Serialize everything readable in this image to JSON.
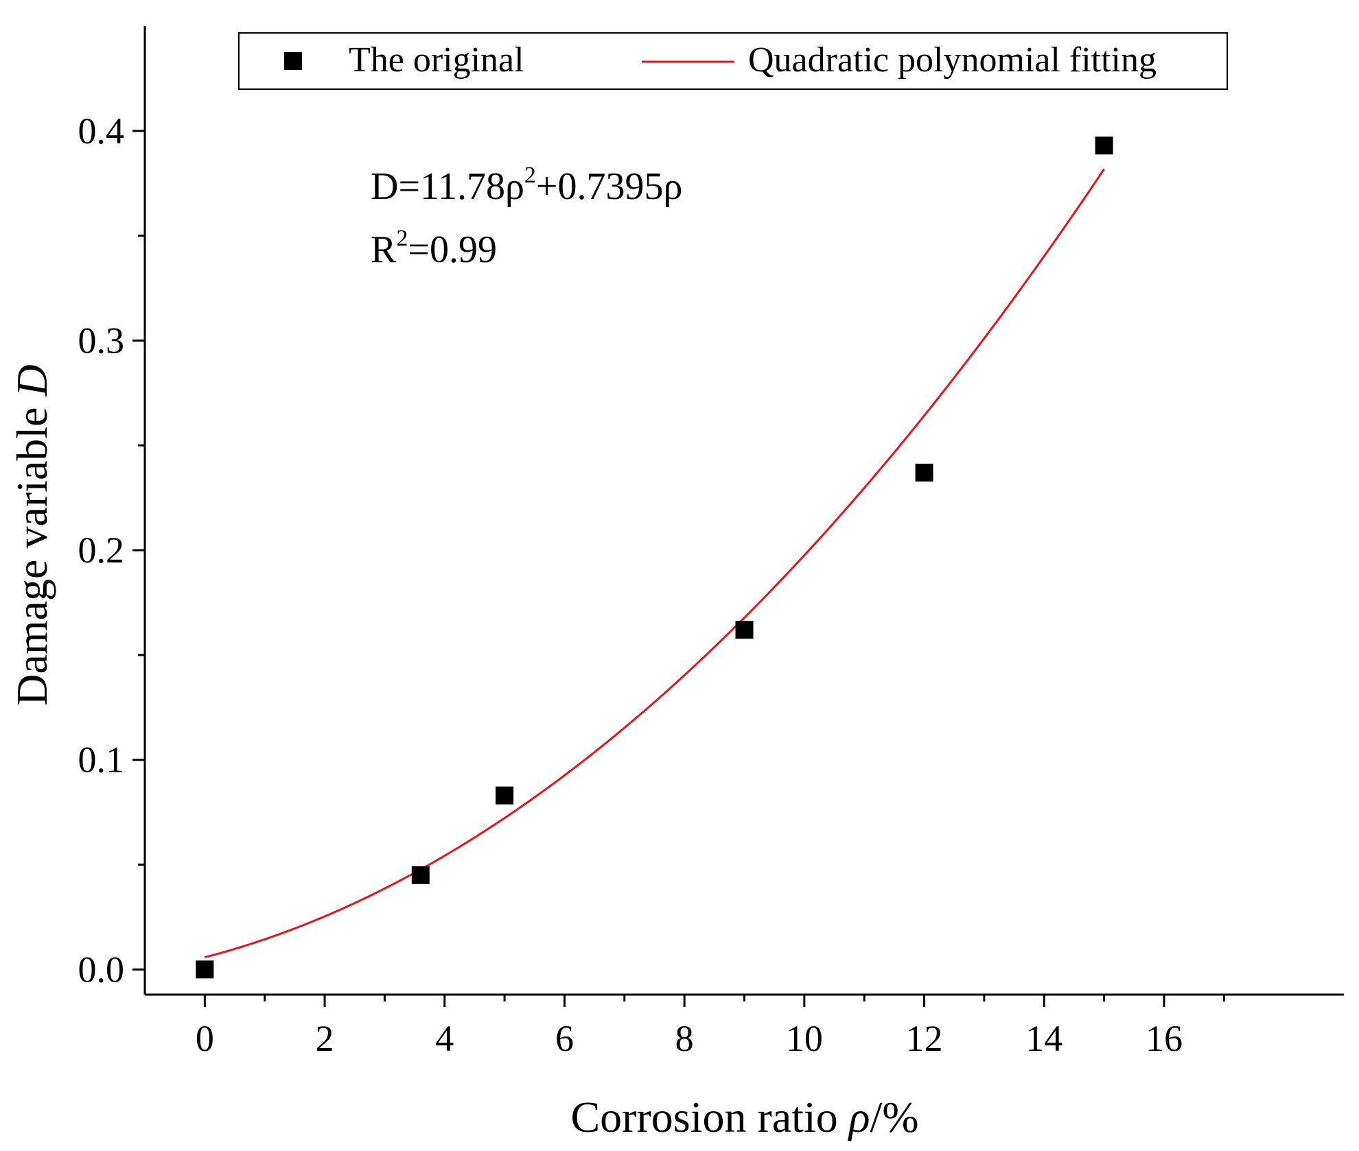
{
  "chart_data": {
    "type": "scatter",
    "xlabel": "Corrosion ratio",
    "xlabel_symbol": "ρ",
    "xlabel_unit": "/%",
    "ylabel": "Damage variable",
    "ylabel_symbol": "D",
    "xlim": [
      -1,
      19
    ],
    "ylim": [
      -0.012,
      0.45
    ],
    "x_ticks": [
      0,
      2,
      4,
      6,
      8,
      10,
      12,
      14,
      16
    ],
    "x_tick_labels": [
      "0",
      "2",
      "4",
      "6",
      "8",
      "10",
      "12",
      "14",
      "16"
    ],
    "y_ticks": [
      0.0,
      0.1,
      0.2,
      0.3,
      0.4
    ],
    "y_tick_labels": [
      "0.0",
      "0.1",
      "0.2",
      "0.3",
      "0.4"
    ],
    "series": [
      {
        "name": "The original",
        "kind": "scatter",
        "marker": "square",
        "color": "#000000",
        "x": [
          0,
          3.6,
          5.0,
          9.0,
          12.0,
          15.0
        ],
        "y": [
          0.0,
          0.045,
          0.083,
          0.162,
          0.237,
          0.393
        ]
      },
      {
        "name": "Quadratic polynomial fitting",
        "kind": "line",
        "color": "#e8141b",
        "equation": {
          "a": 11.78,
          "b": 0.7395,
          "c": 0.0058
        },
        "x_range": [
          0,
          15
        ]
      }
    ],
    "annotations": {
      "equation_main": "D=11.78ρ",
      "equation_sup": "2",
      "equation_rest": "+0.7395ρ",
      "r2_main": "R",
      "r2_sup": "2",
      "r2_rest": "=0.99"
    },
    "legend": {
      "position": "top",
      "entries": [
        "The original",
        "Quadratic polynomial fitting"
      ]
    }
  }
}
